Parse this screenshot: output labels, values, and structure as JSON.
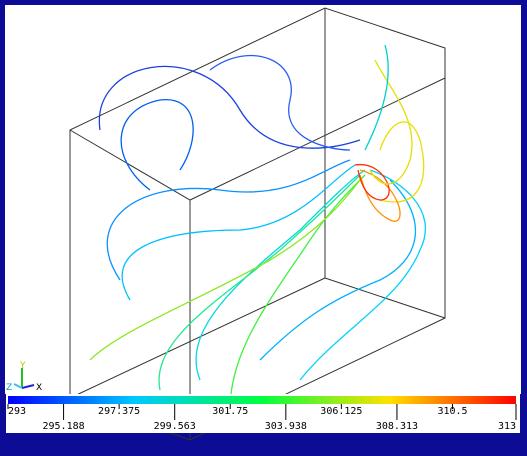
{
  "colorbar": {
    "range": [
      293,
      313
    ],
    "ticks": [
      293,
      295.188,
      297.375,
      299.563,
      301.75,
      303.938,
      306.125,
      308.313,
      310.5,
      313
    ]
  },
  "axis_triad": {
    "y": "Y",
    "z": "Z",
    "x": "X"
  }
}
